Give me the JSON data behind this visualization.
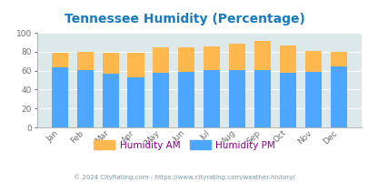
{
  "title": "Tennessee Humidity (Percentage)",
  "months": [
    "Jan",
    "Feb",
    "Mar",
    "Apr",
    "May",
    "Jun",
    "Jul",
    "Aug",
    "Sep",
    "Oct",
    "Nov",
    "Dec"
  ],
  "humidity_pm": [
    63,
    61,
    57,
    53,
    58,
    59,
    61,
    61,
    61,
    58,
    59,
    64
  ],
  "humidity_am": [
    79,
    80,
    79,
    79,
    85,
    85,
    86,
    88,
    91,
    87,
    81,
    80
  ],
  "color_pm": "#4da6ff",
  "color_am": "#ffb84d",
  "bg_color": "#dde8ea",
  "fig_bg": "#ffffff",
  "ylim": [
    0,
    100
  ],
  "yticks": [
    0,
    20,
    40,
    60,
    80,
    100
  ],
  "title_color": "#1a7abf",
  "legend_am_label": "Humidity AM",
  "legend_pm_label": "Humidity PM",
  "legend_text_color": "#880088",
  "footer_text": "© 2024 CityRating.com - https://www.cityrating.com/weather-history/",
  "footer_color": "#7a9aaa",
  "bar_width": 0.65
}
